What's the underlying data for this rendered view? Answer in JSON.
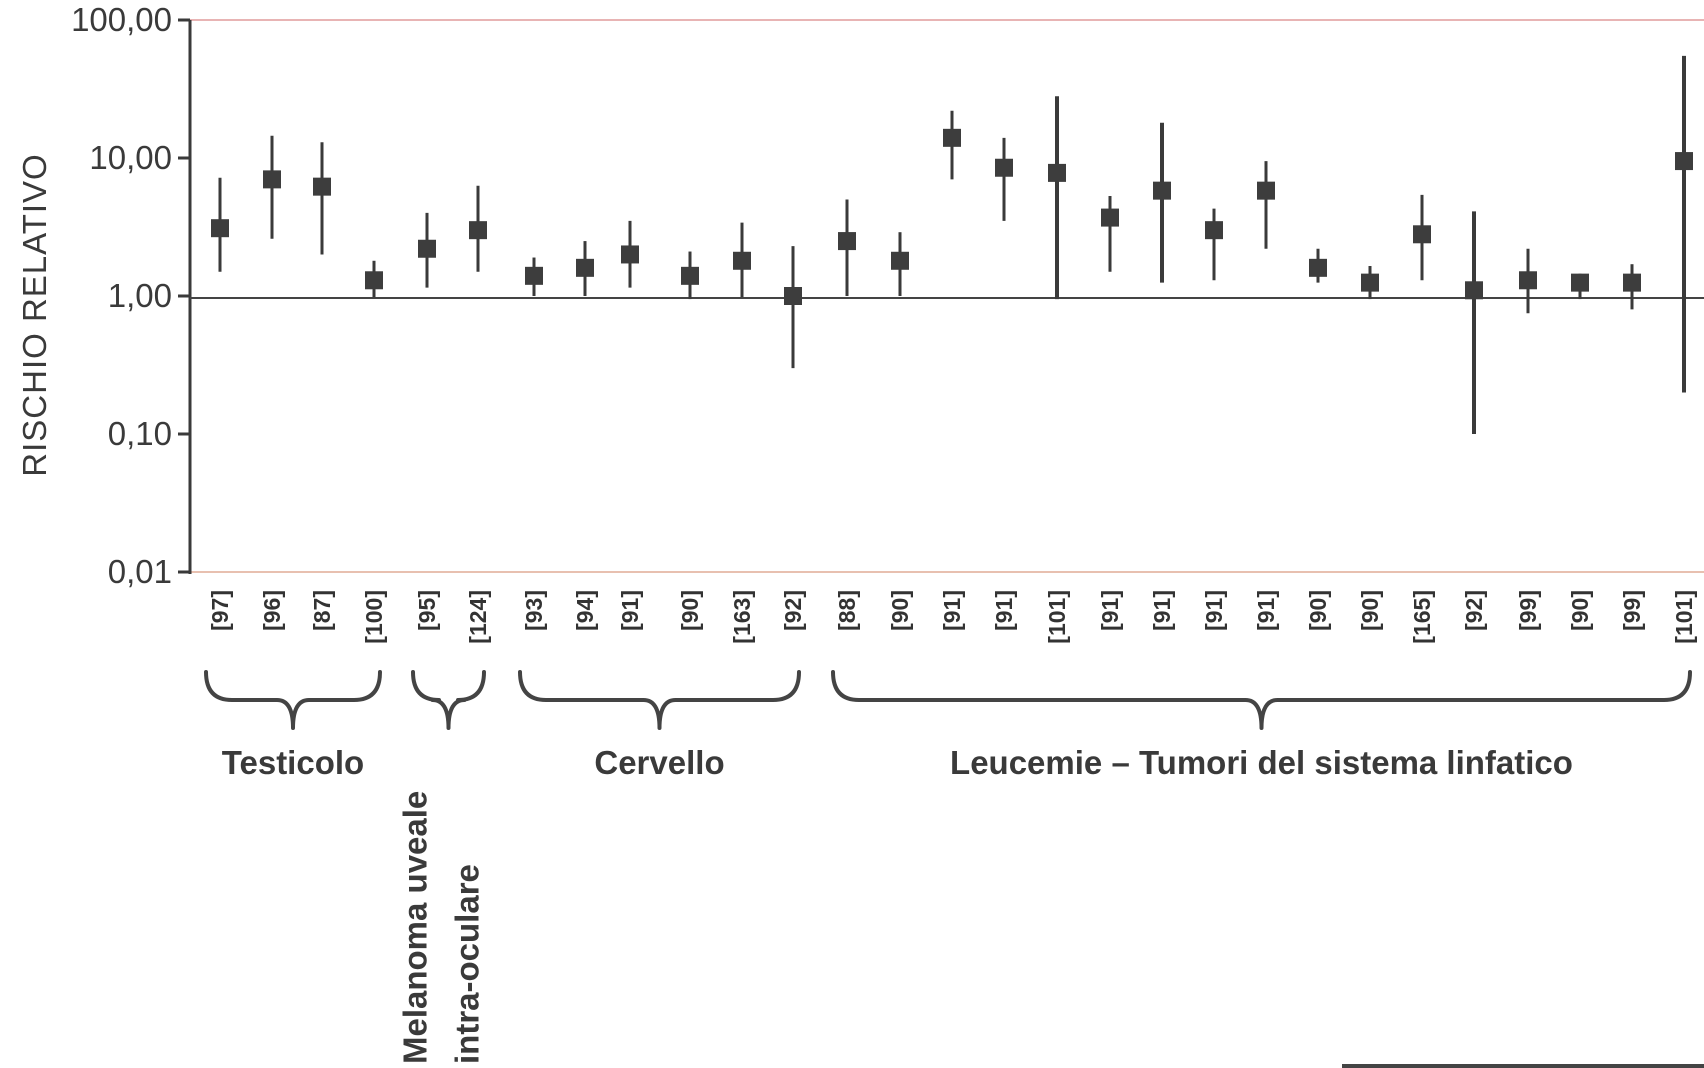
{
  "chart_data": {
    "type": "scatter",
    "title": "",
    "ylabel": "RISCHIO RELATIVO",
    "xlabel": "",
    "yscale": "log",
    "ylim": [
      0.01,
      100
    ],
    "yticks": [
      {
        "value": 0.01,
        "label": "0,01"
      },
      {
        "value": 0.1,
        "label": "0,10"
      },
      {
        "value": 1,
        "label": "1,00"
      },
      {
        "value": 10,
        "label": "10,00"
      },
      {
        "value": 100,
        "label": "100,00"
      }
    ],
    "reference_line": 1,
    "grid": false,
    "points": [
      {
        "ref": "[97]",
        "rr": 3.1,
        "low": 1.5,
        "high": 7.2
      },
      {
        "ref": "[96]",
        "rr": 7.0,
        "low": 2.6,
        "high": 14.5
      },
      {
        "ref": "[87]",
        "rr": 6.2,
        "low": 2.0,
        "high": 13.0
      },
      {
        "ref": "[100]",
        "rr": 1.3,
        "low": 0.98,
        "high": 1.8
      },
      {
        "ref": "[95]",
        "rr": 2.2,
        "low": 1.15,
        "high": 4.0
      },
      {
        "ref": "[124]",
        "rr": 3.0,
        "low": 1.5,
        "high": 6.3
      },
      {
        "ref": "[93]",
        "rr": 1.4,
        "low": 1.0,
        "high": 1.9
      },
      {
        "ref": "[94]",
        "rr": 1.6,
        "low": 1.0,
        "high": 2.5
      },
      {
        "ref": "[91]",
        "rr": 2.0,
        "low": 1.15,
        "high": 3.5
      },
      {
        "ref": "[90]",
        "rr": 1.4,
        "low": 0.95,
        "high": 2.1
      },
      {
        "ref": "[163]",
        "rr": 1.8,
        "low": 0.98,
        "high": 3.4
      },
      {
        "ref": "[92]",
        "rr": 1.0,
        "low": 0.3,
        "high": 2.3
      },
      {
        "ref": "[88]",
        "rr": 2.5,
        "low": 1.0,
        "high": 5.0
      },
      {
        "ref": "[90]",
        "rr": 1.8,
        "low": 1.0,
        "high": 2.9
      },
      {
        "ref": "[91]",
        "rr": 14.0,
        "low": 7.0,
        "high": 22.0
      },
      {
        "ref": "[91]",
        "rr": 8.5,
        "low": 3.5,
        "high": 14.0
      },
      {
        "ref": "[101]",
        "rr": 7.8,
        "low": 0.95,
        "high": 28.0
      },
      {
        "ref": "[91]",
        "rr": 3.7,
        "low": 1.5,
        "high": 5.3
      },
      {
        "ref": "[91]",
        "rr": 5.8,
        "low": 1.25,
        "high": 18.0
      },
      {
        "ref": "[91]",
        "rr": 3.0,
        "low": 1.3,
        "high": 4.3
      },
      {
        "ref": "[91]",
        "rr": 5.8,
        "low": 2.2,
        "high": 9.5
      },
      {
        "ref": "[90]",
        "rr": 1.6,
        "low": 1.25,
        "high": 2.2
      },
      {
        "ref": "[90]",
        "rr": 1.25,
        "low": 0.95,
        "high": 1.65
      },
      {
        "ref": "[165]",
        "rr": 2.8,
        "low": 1.3,
        "high": 5.4
      },
      {
        "ref": "[92]",
        "rr": 1.1,
        "low": 0.1,
        "high": 4.1
      },
      {
        "ref": "[99]",
        "rr": 1.3,
        "low": 0.75,
        "high": 2.2
      },
      {
        "ref": "[90]",
        "rr": 1.25,
        "low": 0.95,
        "high": 1.45
      },
      {
        "ref": "[99]",
        "rr": 1.25,
        "low": 0.8,
        "high": 1.7
      },
      {
        "ref": "[101]",
        "rr": 9.5,
        "low": 0.2,
        "high": 55.0
      }
    ],
    "groups": [
      {
        "label": "Testicolo",
        "first": 0,
        "last": 3
      },
      {
        "label": "Melanoma uveale intra-oculare",
        "lines": [
          "Melanoma uveale",
          "intra-oculare"
        ],
        "first": 4,
        "last": 5,
        "orientation": "vertical"
      },
      {
        "label": "Cervello",
        "first": 6,
        "last": 11
      },
      {
        "label": "Leucemie – Tumori del sistema linfatico",
        "first": 12,
        "last": 28
      }
    ]
  }
}
